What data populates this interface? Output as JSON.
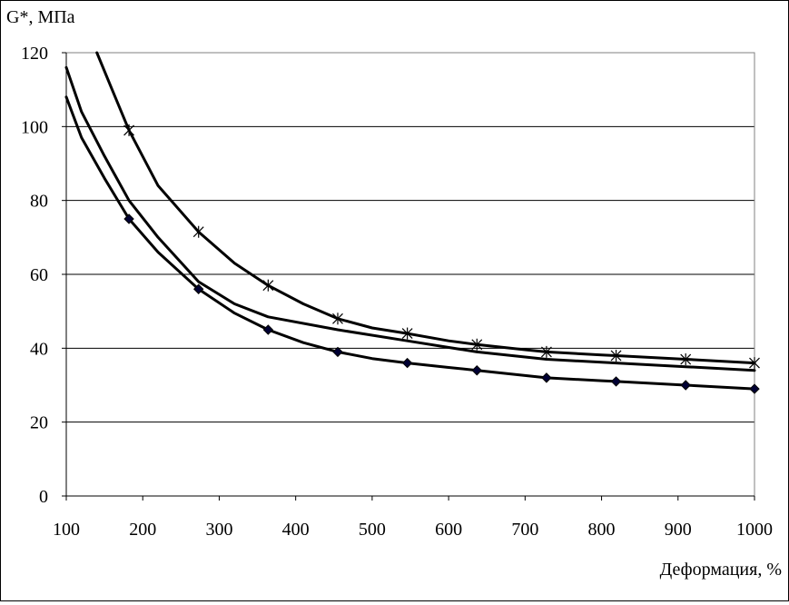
{
  "chart_data": {
    "type": "line",
    "title": "",
    "ylabel": "G*, МПа",
    "xlabel": "Деформация, %",
    "xlim": [
      100,
      1000
    ],
    "ylim": [
      0,
      120
    ],
    "x_ticks": [
      100,
      200,
      300,
      400,
      500,
      600,
      700,
      800,
      900,
      1000
    ],
    "y_ticks": [
      0,
      20,
      40,
      60,
      80,
      100,
      120
    ],
    "grid": "horizontal",
    "legend": "none",
    "series": [
      {
        "marker": "asterisk",
        "x": [
          182,
          273,
          364,
          455,
          546,
          637,
          728,
          819,
          910,
          1000
        ],
        "values": [
          99,
          71.5,
          57,
          48,
          44,
          41,
          39,
          38,
          37,
          36
        ],
        "curve": [
          [
            140,
            120
          ],
          [
            160,
            110
          ],
          [
            182,
            99
          ],
          [
            220,
            84
          ],
          [
            273,
            71.5
          ],
          [
            320,
            63
          ],
          [
            364,
            57
          ],
          [
            410,
            52
          ],
          [
            455,
            48
          ],
          [
            500,
            45.5
          ],
          [
            546,
            44
          ],
          [
            600,
            42
          ],
          [
            637,
            41
          ],
          [
            700,
            39.6
          ],
          [
            728,
            39
          ],
          [
            800,
            38.2
          ],
          [
            819,
            38
          ],
          [
            910,
            37
          ],
          [
            1000,
            36
          ]
        ]
      },
      {
        "marker": "none",
        "curve": [
          [
            100,
            116
          ],
          [
            120,
            104
          ],
          [
            150,
            92
          ],
          [
            182,
            80
          ],
          [
            220,
            70
          ],
          [
            273,
            58
          ],
          [
            320,
            52
          ],
          [
            364,
            48.5
          ],
          [
            455,
            45
          ],
          [
            546,
            42
          ],
          [
            637,
            39
          ],
          [
            728,
            37
          ],
          [
            819,
            36
          ],
          [
            910,
            35
          ],
          [
            1000,
            34
          ]
        ]
      },
      {
        "marker": "diamond",
        "x": [
          182,
          273,
          364,
          455,
          546,
          637,
          728,
          819,
          910,
          1000
        ],
        "values": [
          75,
          56,
          45,
          39,
          36,
          34,
          32,
          31,
          30,
          29
        ],
        "curve": [
          [
            100,
            108
          ],
          [
            120,
            97
          ],
          [
            150,
            86
          ],
          [
            182,
            75
          ],
          [
            220,
            66
          ],
          [
            273,
            56
          ],
          [
            320,
            49.5
          ],
          [
            364,
            45
          ],
          [
            410,
            41.5
          ],
          [
            455,
            39
          ],
          [
            500,
            37.2
          ],
          [
            546,
            36
          ],
          [
            600,
            34.8
          ],
          [
            637,
            34
          ],
          [
            700,
            32.6
          ],
          [
            728,
            32
          ],
          [
            800,
            31.2
          ],
          [
            819,
            31
          ],
          [
            910,
            30
          ],
          [
            1000,
            29
          ]
        ]
      }
    ]
  }
}
